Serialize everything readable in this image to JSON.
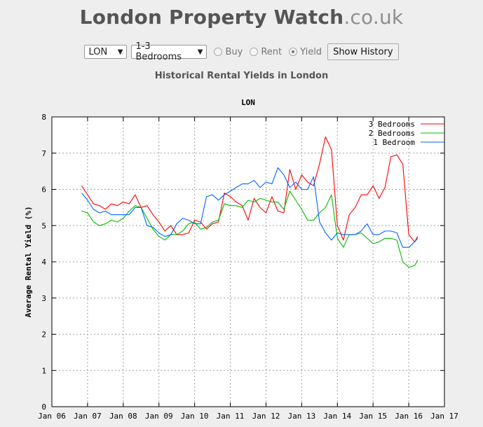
{
  "header": {
    "title_main": "London Property Watch",
    "title_tld": ".co.uk"
  },
  "controls": {
    "area_select": "LON",
    "bedrooms_select": "1-3 Bedrooms",
    "radio_buy": "Buy",
    "radio_rent": "Rent",
    "radio_yield": "Yield",
    "selected_mode": "Yield",
    "show_history_label": "Show History"
  },
  "chart_heading": "Historical Rental Yields in London",
  "chart_data": {
    "type": "line",
    "title": "LON",
    "xlabel": "",
    "ylabel": "Average Rental Yield (%)",
    "ylim": [
      0,
      8
    ],
    "xlim": [
      "2006-01",
      "2017-01"
    ],
    "grid": true,
    "legend_position": "top-right",
    "yticks": [
      0,
      1,
      2,
      3,
      4,
      5,
      6,
      7,
      8
    ],
    "xticks": [
      "Jan 06",
      "Jan 07",
      "Jan 08",
      "Jan 09",
      "Jan 10",
      "Jan 11",
      "Jan 12",
      "Jan 13",
      "Jan 14",
      "Jan 15",
      "Jan 16",
      "Jan 17"
    ],
    "series": [
      {
        "name": "3 Bedrooms",
        "color": "#ff0000",
        "points": [
          [
            "2006-11",
            6.1
          ],
          [
            "2007-01",
            5.85
          ],
          [
            "2007-03",
            5.6
          ],
          [
            "2007-05",
            5.55
          ],
          [
            "2007-07",
            5.45
          ],
          [
            "2007-09",
            5.6
          ],
          [
            "2007-11",
            5.55
          ],
          [
            "2008-01",
            5.65
          ],
          [
            "2008-03",
            5.6
          ],
          [
            "2008-05",
            5.85
          ],
          [
            "2008-07",
            5.5
          ],
          [
            "2008-09",
            5.55
          ],
          [
            "2008-11",
            5.3
          ],
          [
            "2009-01",
            5.1
          ],
          [
            "2009-03",
            4.85
          ],
          [
            "2009-05",
            5.0
          ],
          [
            "2009-07",
            4.75
          ],
          [
            "2009-09",
            4.75
          ],
          [
            "2009-11",
            4.8
          ],
          [
            "2010-01",
            5.15
          ],
          [
            "2010-03",
            5.1
          ],
          [
            "2010-05",
            4.9
          ],
          [
            "2010-07",
            5.05
          ],
          [
            "2010-09",
            5.1
          ],
          [
            "2010-11",
            5.9
          ],
          [
            "2011-01",
            5.8
          ],
          [
            "2011-03",
            5.65
          ],
          [
            "2011-05",
            5.55
          ],
          [
            "2011-07",
            5.15
          ],
          [
            "2011-09",
            5.75
          ],
          [
            "2011-11",
            5.5
          ],
          [
            "2012-01",
            5.35
          ],
          [
            "2012-03",
            5.8
          ],
          [
            "2012-05",
            5.4
          ],
          [
            "2012-07",
            5.35
          ],
          [
            "2012-09",
            6.55
          ],
          [
            "2012-11",
            6.0
          ],
          [
            "2013-01",
            6.4
          ],
          [
            "2013-03",
            6.2
          ],
          [
            "2013-05",
            6.1
          ],
          [
            "2013-07",
            6.7
          ],
          [
            "2013-09",
            7.45
          ],
          [
            "2013-11",
            7.1
          ],
          [
            "2014-01",
            5.0
          ],
          [
            "2014-03",
            4.6
          ],
          [
            "2014-05",
            5.3
          ],
          [
            "2014-07",
            5.5
          ],
          [
            "2014-09",
            5.85
          ],
          [
            "2014-11",
            5.85
          ],
          [
            "2015-01",
            6.1
          ],
          [
            "2015-03",
            5.75
          ],
          [
            "2015-05",
            6.05
          ],
          [
            "2015-07",
            6.9
          ],
          [
            "2015-09",
            6.95
          ],
          [
            "2015-11",
            6.7
          ],
          [
            "2016-01",
            4.75
          ],
          [
            "2016-03",
            4.55
          ],
          [
            "2016-04",
            4.7
          ]
        ]
      },
      {
        "name": "2 Bedrooms",
        "color": "#00bb00",
        "points": [
          [
            "2006-11",
            5.4
          ],
          [
            "2007-01",
            5.35
          ],
          [
            "2007-03",
            5.1
          ],
          [
            "2007-05",
            5.0
          ],
          [
            "2007-07",
            5.05
          ],
          [
            "2007-09",
            5.15
          ],
          [
            "2007-11",
            5.1
          ],
          [
            "2008-01",
            5.2
          ],
          [
            "2008-03",
            5.4
          ],
          [
            "2008-05",
            5.55
          ],
          [
            "2008-07",
            5.5
          ],
          [
            "2008-09",
            5.2
          ],
          [
            "2008-11",
            4.9
          ],
          [
            "2009-01",
            4.7
          ],
          [
            "2009-03",
            4.6
          ],
          [
            "2009-05",
            4.75
          ],
          [
            "2009-07",
            4.75
          ],
          [
            "2009-09",
            4.85
          ],
          [
            "2009-11",
            5.05
          ],
          [
            "2010-01",
            5.1
          ],
          [
            "2010-03",
            4.9
          ],
          [
            "2010-05",
            4.95
          ],
          [
            "2010-07",
            5.1
          ],
          [
            "2010-09",
            5.15
          ],
          [
            "2010-11",
            5.6
          ],
          [
            "2011-01",
            5.55
          ],
          [
            "2011-03",
            5.55
          ],
          [
            "2011-05",
            5.5
          ],
          [
            "2011-07",
            5.7
          ],
          [
            "2011-09",
            5.65
          ],
          [
            "2011-11",
            5.75
          ],
          [
            "2012-01",
            5.7
          ],
          [
            "2012-03",
            5.65
          ],
          [
            "2012-05",
            5.65
          ],
          [
            "2012-07",
            5.45
          ],
          [
            "2012-09",
            5.95
          ],
          [
            "2012-11",
            5.7
          ],
          [
            "2013-01",
            5.45
          ],
          [
            "2013-03",
            5.15
          ],
          [
            "2013-05",
            5.15
          ],
          [
            "2013-07",
            5.35
          ],
          [
            "2013-09",
            5.5
          ],
          [
            "2013-11",
            5.85
          ],
          [
            "2014-01",
            4.65
          ],
          [
            "2014-03",
            4.4
          ],
          [
            "2014-05",
            4.75
          ],
          [
            "2014-07",
            4.75
          ],
          [
            "2014-09",
            4.8
          ],
          [
            "2014-11",
            4.65
          ],
          [
            "2015-01",
            4.5
          ],
          [
            "2015-03",
            4.55
          ],
          [
            "2015-05",
            4.65
          ],
          [
            "2015-07",
            4.65
          ],
          [
            "2015-09",
            4.6
          ],
          [
            "2015-11",
            4.0
          ],
          [
            "2016-01",
            3.85
          ],
          [
            "2016-03",
            3.9
          ],
          [
            "2016-04",
            4.05
          ]
        ]
      },
      {
        "name": "1 Bedroom",
        "color": "#0066ff",
        "points": [
          [
            "2006-11",
            5.9
          ],
          [
            "2007-01",
            5.7
          ],
          [
            "2007-03",
            5.45
          ],
          [
            "2007-05",
            5.35
          ],
          [
            "2007-07",
            5.4
          ],
          [
            "2007-09",
            5.3
          ],
          [
            "2007-11",
            5.3
          ],
          [
            "2008-01",
            5.3
          ],
          [
            "2008-03",
            5.3
          ],
          [
            "2008-05",
            5.5
          ],
          [
            "2008-07",
            5.5
          ],
          [
            "2008-09",
            5.0
          ],
          [
            "2008-11",
            4.95
          ],
          [
            "2009-01",
            4.8
          ],
          [
            "2009-03",
            4.7
          ],
          [
            "2009-05",
            4.75
          ],
          [
            "2009-07",
            5.05
          ],
          [
            "2009-09",
            5.2
          ],
          [
            "2009-11",
            5.15
          ],
          [
            "2010-01",
            5.05
          ],
          [
            "2010-03",
            5.05
          ],
          [
            "2010-05",
            5.8
          ],
          [
            "2010-07",
            5.85
          ],
          [
            "2010-09",
            5.7
          ],
          [
            "2010-11",
            5.85
          ],
          [
            "2011-01",
            5.95
          ],
          [
            "2011-03",
            6.05
          ],
          [
            "2011-05",
            6.15
          ],
          [
            "2011-07",
            6.15
          ],
          [
            "2011-09",
            6.25
          ],
          [
            "2011-11",
            6.05
          ],
          [
            "2012-01",
            6.2
          ],
          [
            "2012-03",
            6.15
          ],
          [
            "2012-05",
            6.6
          ],
          [
            "2012-07",
            6.4
          ],
          [
            "2012-09",
            6.05
          ],
          [
            "2012-11",
            6.2
          ],
          [
            "2013-01",
            6.0
          ],
          [
            "2013-03",
            6.0
          ],
          [
            "2013-05",
            6.35
          ],
          [
            "2013-07",
            5.1
          ],
          [
            "2013-09",
            4.8
          ],
          [
            "2013-11",
            4.6
          ],
          [
            "2014-01",
            4.8
          ],
          [
            "2014-03",
            4.75
          ],
          [
            "2014-05",
            4.75
          ],
          [
            "2014-07",
            4.75
          ],
          [
            "2014-09",
            4.85
          ],
          [
            "2014-11",
            5.05
          ],
          [
            "2015-01",
            4.75
          ],
          [
            "2015-03",
            4.75
          ],
          [
            "2015-05",
            4.85
          ],
          [
            "2015-07",
            4.85
          ],
          [
            "2015-09",
            4.8
          ],
          [
            "2015-11",
            4.4
          ],
          [
            "2016-01",
            4.4
          ],
          [
            "2016-03",
            4.55
          ],
          [
            "2016-04",
            4.65
          ]
        ]
      }
    ]
  }
}
